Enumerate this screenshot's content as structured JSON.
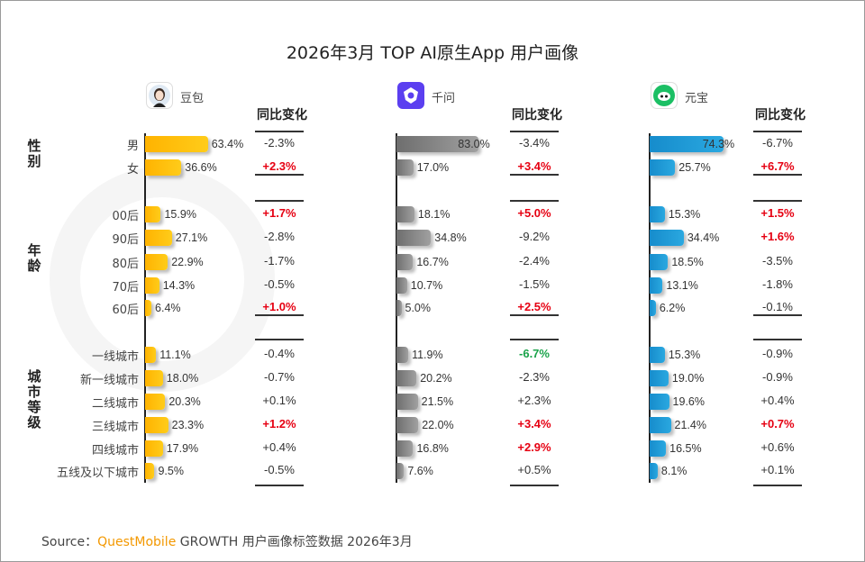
{
  "title": "2026年3月 TOP AI原生App 用户画像",
  "watermark": "QUESTMOBILE",
  "yoy_header": "同比变化",
  "groups": [
    {
      "label": "性别",
      "rows": [
        "男",
        "女"
      ]
    },
    {
      "label": "年龄",
      "rows": [
        "00后",
        "90后",
        "80后",
        "70后",
        "60后"
      ]
    },
    {
      "label": "城市等级",
      "rows": [
        "一线城市",
        "新一线城市",
        "二线城市",
        "三线城市",
        "四线城市",
        "五线及以下城市"
      ]
    }
  ],
  "chart_data": {
    "type": "bar",
    "orientation": "horizontal",
    "title": "2026年3月 TOP AI原生App 用户画像",
    "categories": [
      "男",
      "女",
      "00后",
      "90后",
      "80后",
      "70后",
      "60后",
      "一线城市",
      "新一线城市",
      "二线城市",
      "三线城市",
      "四线城市",
      "五线及以下城市"
    ],
    "series": [
      {
        "name": "豆包",
        "icon": "doubao-avatar-icon",
        "color": "#ffc000",
        "values": [
          63.4,
          36.6,
          15.9,
          27.1,
          22.9,
          14.3,
          6.4,
          11.1,
          18.0,
          20.3,
          23.3,
          17.9,
          9.5
        ],
        "yoy": [
          "-2.3%",
          "+2.3%",
          "+1.7%",
          "-2.8%",
          "-1.7%",
          "-0.5%",
          "+1.0%",
          "-0.4%",
          "-0.7%",
          "+0.1%",
          "+1.2%",
          "+0.4%",
          "-0.5%"
        ],
        "yoy_style": [
          "normal",
          "up",
          "up",
          "normal",
          "normal",
          "normal",
          "up",
          "normal",
          "normal",
          "normal",
          "up",
          "normal",
          "normal"
        ]
      },
      {
        "name": "千问",
        "icon": "qianwen-logo-icon",
        "color": "#808080",
        "values": [
          83.0,
          17.0,
          18.1,
          34.8,
          16.7,
          10.7,
          5.0,
          11.9,
          20.2,
          21.5,
          22.0,
          16.8,
          7.6
        ],
        "yoy": [
          "-3.4%",
          "+3.4%",
          "+5.0%",
          "-9.2%",
          "-2.4%",
          "-1.5%",
          "+2.5%",
          "-6.7%",
          "-2.3%",
          "+2.3%",
          "+3.4%",
          "+2.9%",
          "+0.5%"
        ],
        "yoy_style": [
          "normal",
          "up",
          "up",
          "normal",
          "normal",
          "normal",
          "up",
          "down",
          "normal",
          "normal",
          "up",
          "up",
          "normal"
        ]
      },
      {
        "name": "元宝",
        "icon": "yuanbao-logo-icon",
        "color": "#1b9bd7",
        "values": [
          74.3,
          25.7,
          15.3,
          34.4,
          18.5,
          13.1,
          6.2,
          15.3,
          19.0,
          19.6,
          21.4,
          16.5,
          8.1
        ],
        "yoy": [
          "-6.7%",
          "+6.7%",
          "+1.5%",
          "+1.6%",
          "-3.5%",
          "-1.8%",
          "-0.1%",
          "-0.9%",
          "-0.9%",
          "+0.4%",
          "+0.7%",
          "+0.6%",
          "+0.1%"
        ],
        "yoy_style": [
          "normal",
          "up",
          "up",
          "up",
          "normal",
          "normal",
          "normal",
          "normal",
          "normal",
          "normal",
          "up",
          "normal",
          "normal"
        ]
      }
    ],
    "value_unit": "%",
    "xlabel": "",
    "ylabel": ""
  },
  "source": {
    "prefix": "Source：",
    "brand": "QuestMobile",
    "text": " GROWTH 用户画像标签数据 2026年3月"
  },
  "colors": {
    "up": "#e60012",
    "down": "#1aa34a",
    "brand": "#f39800"
  }
}
